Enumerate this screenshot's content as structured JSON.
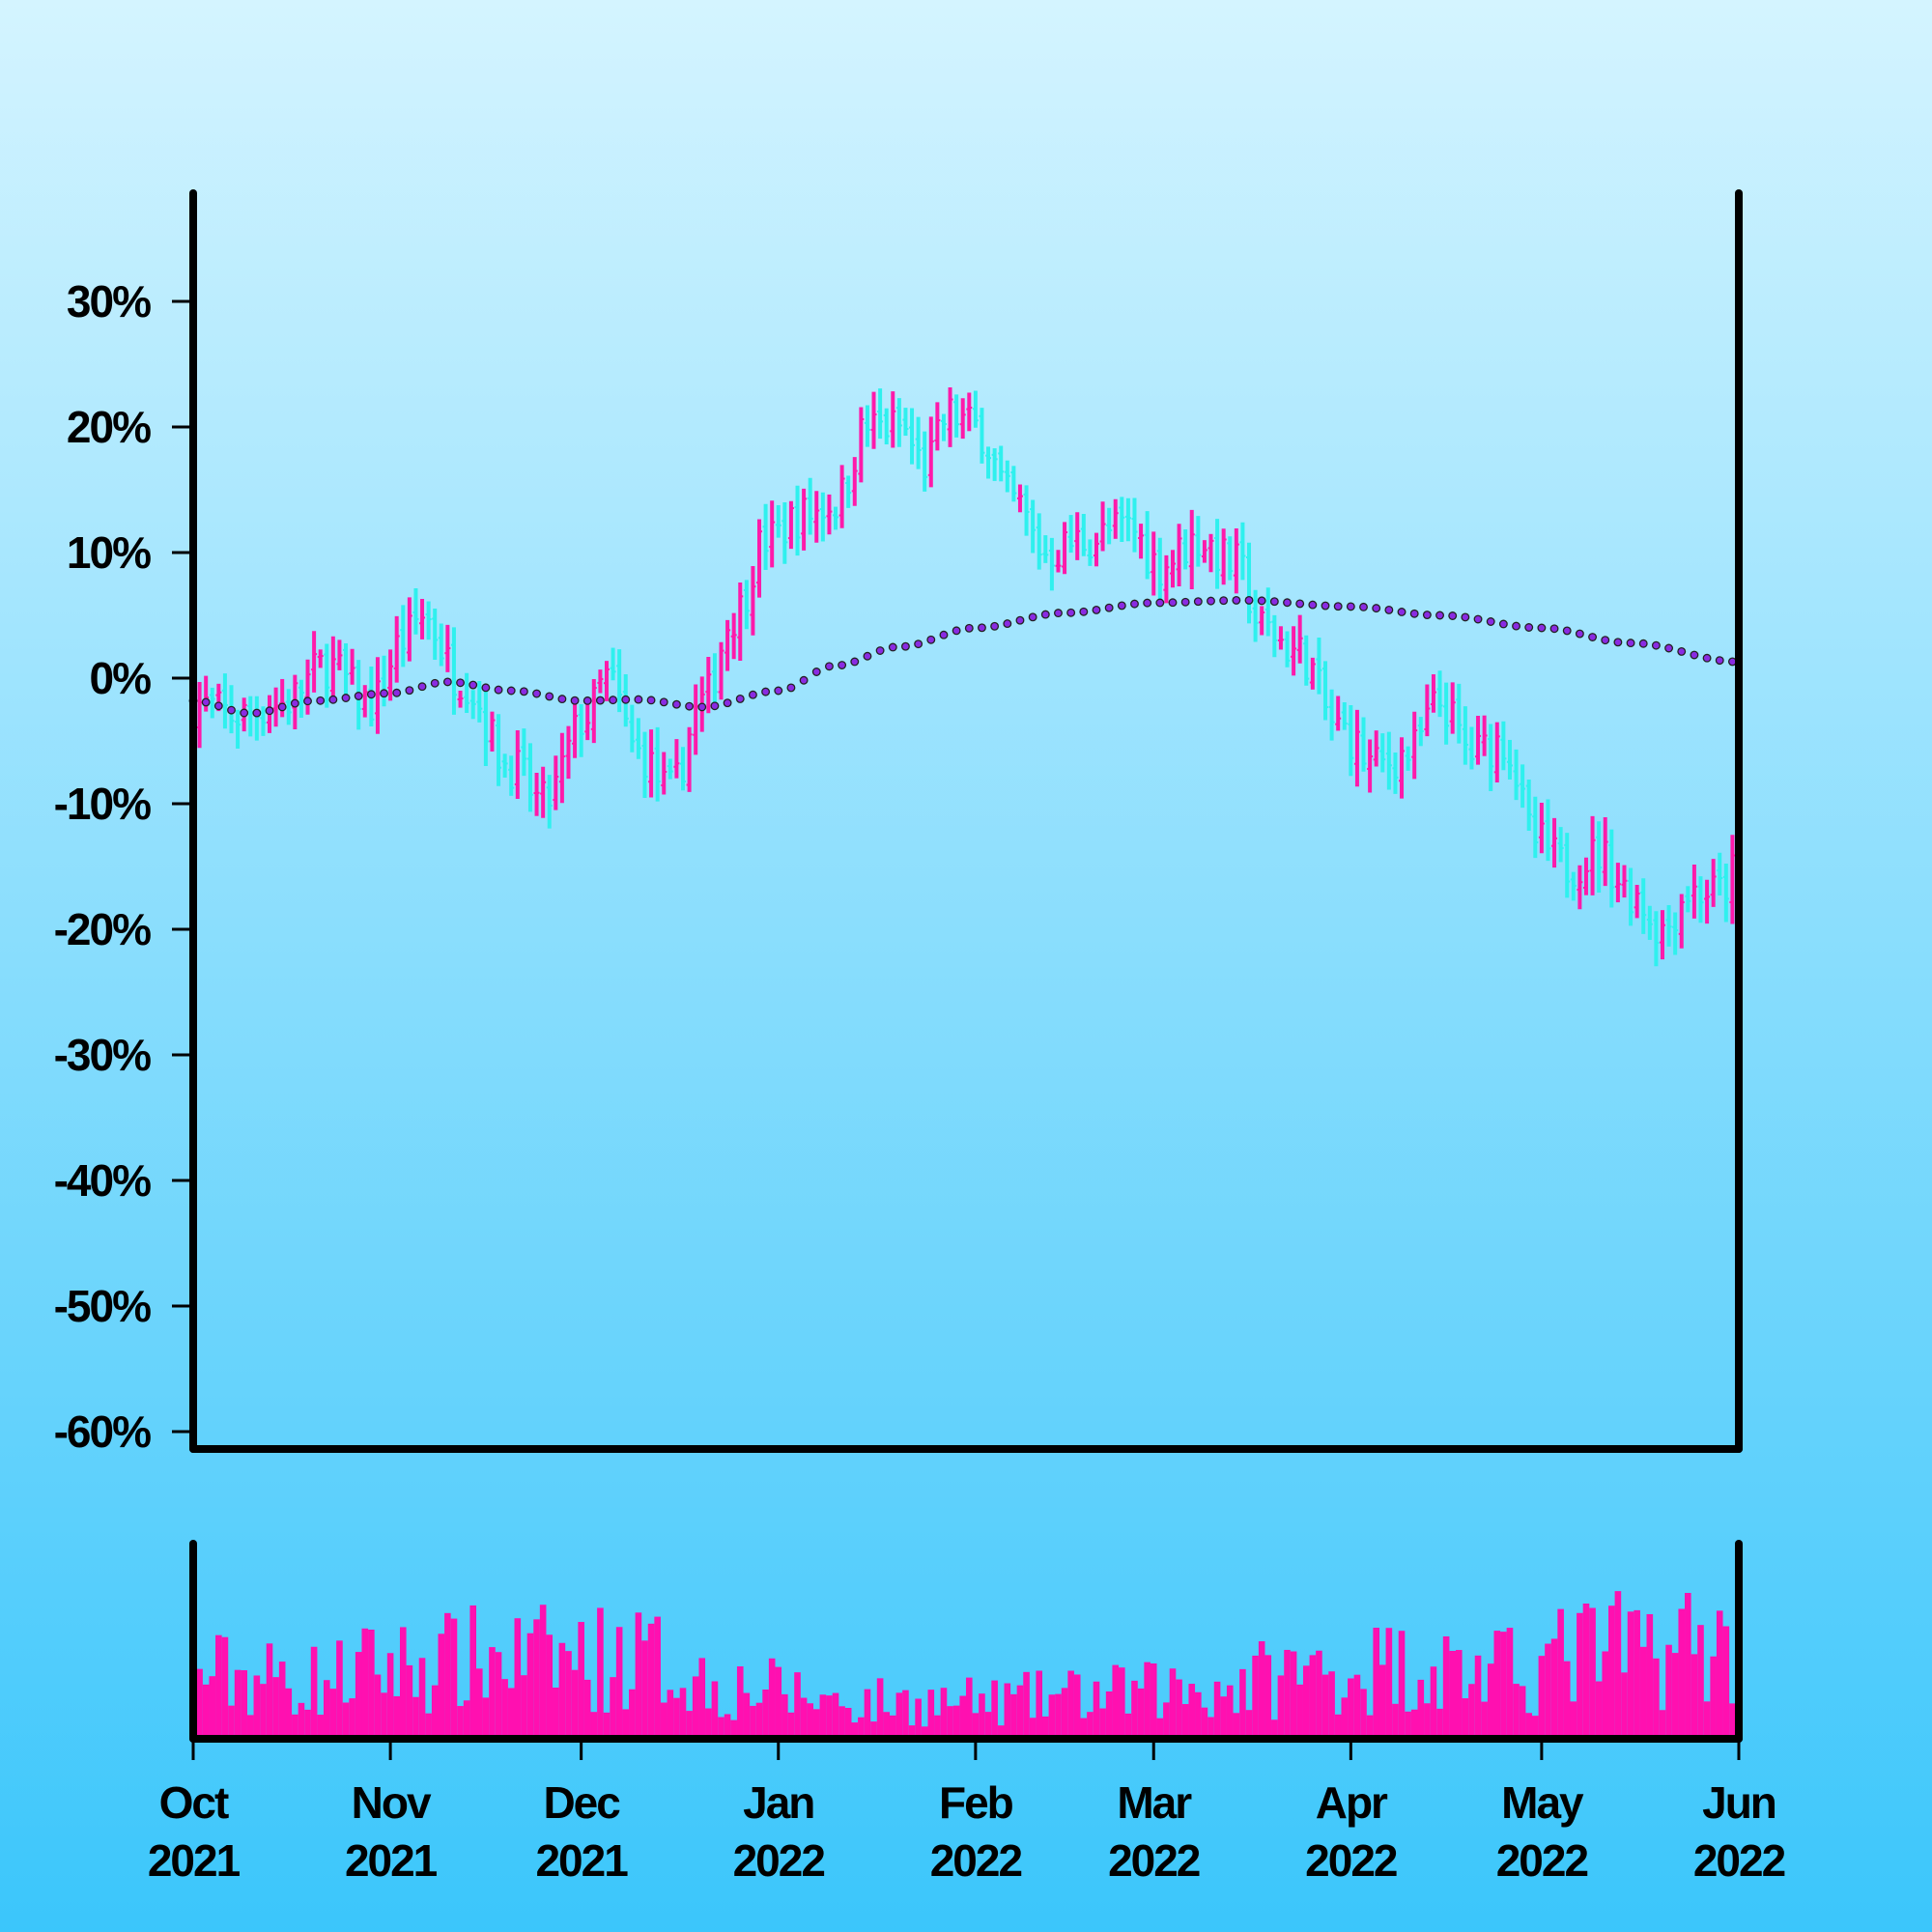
{
  "chart_data": {
    "type": "ohlc",
    "title": "",
    "xlabel": "",
    "ylabel": "",
    "ylim": [
      -0.6,
      0.35
    ],
    "y_tick_values": [
      0.3,
      0.2,
      0.1,
      0.0,
      -0.1,
      -0.2,
      -0.3,
      -0.4,
      -0.5,
      -0.6
    ],
    "y_tick_labels": [
      "30%",
      "20%",
      "10%",
      "0%",
      "-10%",
      "-20%",
      "-30%",
      "-40%",
      "-50%",
      "-60%"
    ],
    "xlim": [
      "2021-10-01",
      "2022-06-01"
    ],
    "x_ticks": [
      {
        "date": "2021-10-01",
        "month": "Oct",
        "year": "2021"
      },
      {
        "date": "2021-11-01",
        "month": "Nov",
        "year": "2021"
      },
      {
        "date": "2021-12-01",
        "month": "Dec",
        "year": "2021"
      },
      {
        "date": "2022-01-01",
        "month": "Jan",
        "year": "2022"
      },
      {
        "date": "2022-02-01",
        "month": "Feb",
        "year": "2022"
      },
      {
        "date": "2022-03-01",
        "month": "Mar",
        "year": "2022"
      },
      {
        "date": "2022-04-01",
        "month": "Apr",
        "year": "2022"
      },
      {
        "date": "2022-05-01",
        "month": "May",
        "year": "2022"
      },
      {
        "date": "2022-06-01",
        "month": "Jun",
        "year": "2022"
      }
    ],
    "close_anchors": [
      {
        "date": "2021-10-01",
        "value": -0.02
      },
      {
        "date": "2021-10-08",
        "value": -0.03
      },
      {
        "date": "2021-10-15",
        "value": -0.02
      },
      {
        "date": "2021-10-22",
        "value": 0.01
      },
      {
        "date": "2021-10-29",
        "value": -0.02
      },
      {
        "date": "2021-11-03",
        "value": 0.03
      },
      {
        "date": "2021-11-06",
        "value": 0.05
      },
      {
        "date": "2021-11-12",
        "value": 0.0
      },
      {
        "date": "2021-11-20",
        "value": -0.07
      },
      {
        "date": "2021-11-25",
        "value": -0.1
      },
      {
        "date": "2021-12-02",
        "value": -0.03
      },
      {
        "date": "2021-12-05",
        "value": 0.0
      },
      {
        "date": "2021-12-10",
        "value": -0.06
      },
      {
        "date": "2021-12-15",
        "value": -0.09
      },
      {
        "date": "2021-12-20",
        "value": -0.02
      },
      {
        "date": "2021-12-25",
        "value": 0.05
      },
      {
        "date": "2021-12-30",
        "value": 0.11
      },
      {
        "date": "2022-01-05",
        "value": 0.13
      },
      {
        "date": "2022-01-10",
        "value": 0.14
      },
      {
        "date": "2022-01-15",
        "value": 0.2
      },
      {
        "date": "2022-01-20",
        "value": 0.2
      },
      {
        "date": "2022-01-24",
        "value": 0.17
      },
      {
        "date": "2022-01-28",
        "value": 0.21
      },
      {
        "date": "2022-02-01",
        "value": 0.2
      },
      {
        "date": "2022-02-07",
        "value": 0.14
      },
      {
        "date": "2022-02-12",
        "value": 0.1
      },
      {
        "date": "2022-02-18",
        "value": 0.11
      },
      {
        "date": "2022-02-25",
        "value": 0.12
      },
      {
        "date": "2022-03-02",
        "value": 0.09
      },
      {
        "date": "2022-03-08",
        "value": 0.11
      },
      {
        "date": "2022-03-14",
        "value": 0.09
      },
      {
        "date": "2022-03-18",
        "value": 0.04
      },
      {
        "date": "2022-03-24",
        "value": 0.02
      },
      {
        "date": "2022-03-30",
        "value": -0.04
      },
      {
        "date": "2022-04-05",
        "value": -0.07
      },
      {
        "date": "2022-04-10",
        "value": -0.06
      },
      {
        "date": "2022-04-15",
        "value": -0.02
      },
      {
        "date": "2022-04-20",
        "value": -0.06
      },
      {
        "date": "2022-04-25",
        "value": -0.05
      },
      {
        "date": "2022-04-30",
        "value": -0.13
      },
      {
        "date": "2022-05-05",
        "value": -0.15
      },
      {
        "date": "2022-05-10",
        "value": -0.14
      },
      {
        "date": "2022-05-15",
        "value": -0.17
      },
      {
        "date": "2022-05-20",
        "value": -0.2
      },
      {
        "date": "2022-05-24",
        "value": -0.17
      },
      {
        "date": "2022-05-29",
        "value": -0.17
      },
      {
        "date": "2022-06-01",
        "value": -0.15
      }
    ],
    "moving_average": [
      {
        "date": "2021-10-01",
        "value": -0.018
      },
      {
        "date": "2021-10-10",
        "value": -0.028
      },
      {
        "date": "2021-10-20",
        "value": -0.018
      },
      {
        "date": "2021-11-01",
        "value": -0.012
      },
      {
        "date": "2021-11-10",
        "value": -0.003
      },
      {
        "date": "2021-11-20",
        "value": -0.01
      },
      {
        "date": "2021-12-01",
        "value": -0.018
      },
      {
        "date": "2021-12-10",
        "value": -0.017
      },
      {
        "date": "2021-12-20",
        "value": -0.023
      },
      {
        "date": "2022-01-01",
        "value": -0.01
      },
      {
        "date": "2022-01-10",
        "value": 0.01
      },
      {
        "date": "2022-01-20",
        "value": 0.025
      },
      {
        "date": "2022-02-01",
        "value": 0.04
      },
      {
        "date": "2022-02-15",
        "value": 0.052
      },
      {
        "date": "2022-03-01",
        "value": 0.06
      },
      {
        "date": "2022-03-15",
        "value": 0.062
      },
      {
        "date": "2022-04-01",
        "value": 0.057
      },
      {
        "date": "2022-04-15",
        "value": 0.05
      },
      {
        "date": "2022-05-01",
        "value": 0.04
      },
      {
        "date": "2022-05-15",
        "value": 0.028
      },
      {
        "date": "2022-06-01",
        "value": 0.013
      }
    ],
    "volume_levels": [
      {
        "date": "2021-10-01",
        "value": 0.45
      },
      {
        "date": "2021-10-20",
        "value": 0.4
      },
      {
        "date": "2021-11-01",
        "value": 0.5
      },
      {
        "date": "2021-11-20",
        "value": 0.55
      },
      {
        "date": "2021-12-10",
        "value": 0.55
      },
      {
        "date": "2021-12-25",
        "value": 0.35
      },
      {
        "date": "2022-01-15",
        "value": 0.25
      },
      {
        "date": "2022-02-01",
        "value": 0.25
      },
      {
        "date": "2022-02-20",
        "value": 0.3
      },
      {
        "date": "2022-03-10",
        "value": 0.35
      },
      {
        "date": "2022-03-25",
        "value": 0.45
      },
      {
        "date": "2022-04-10",
        "value": 0.5
      },
      {
        "date": "2022-04-25",
        "value": 0.45
      },
      {
        "date": "2022-05-10",
        "value": 0.6
      },
      {
        "date": "2022-05-25",
        "value": 0.65
      },
      {
        "date": "2022-06-01",
        "value": 0.6
      }
    ],
    "colors": {
      "up": "#ff1aaa",
      "down": "#2ff0ee",
      "volume": "#ff10b0",
      "moving_average_fill": "#8a2be2",
      "moving_average_edge": "#222222",
      "axis": "#000000",
      "background_top": "#d4f4ff",
      "background_bottom": "#3bc6fb"
    },
    "grid": false,
    "legend": "none"
  }
}
